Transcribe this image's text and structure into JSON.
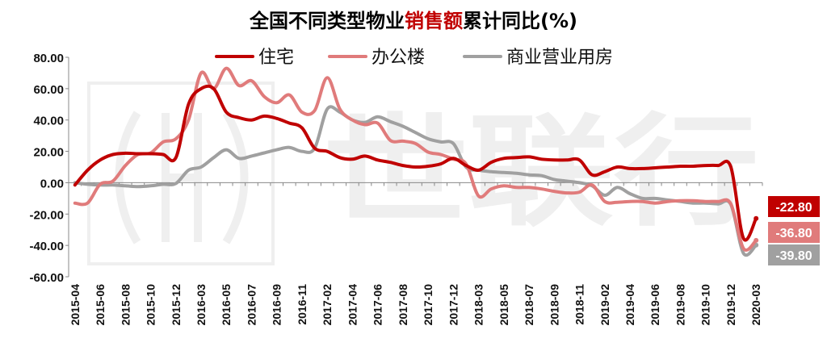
{
  "chart_data": {
    "type": "line",
    "title": {
      "prefix": "全国不同类型物业",
      "highlight": "销售额",
      "suffix": "累计同比(%)"
    },
    "watermark": "世联行",
    "ylim": [
      -60,
      80
    ],
    "yticks": [
      "80.00",
      "60.00",
      "40.00",
      "20.00",
      "0.00",
      "-20.00",
      "-40.00",
      "-60.00"
    ],
    "grid": false,
    "legend_position": "top",
    "colors": {
      "title_highlight": "#c00000"
    },
    "x": [
      "2015-04",
      "2015-05",
      "2015-06",
      "2015-07",
      "2015-08",
      "2015-09",
      "2015-10",
      "2015-11",
      "2015-12",
      "2016-02",
      "2016-03",
      "2016-04",
      "2016-05",
      "2016-06",
      "2016-07",
      "2016-08",
      "2016-09",
      "2016-10",
      "2016-11",
      "2016-12",
      "2017-02",
      "2017-03",
      "2017-04",
      "2017-05",
      "2017-06",
      "2017-07",
      "2017-08",
      "2017-09",
      "2017-10",
      "2017-11",
      "2017-12",
      "2018-02",
      "2018-03",
      "2018-04",
      "2018-05",
      "2018-06",
      "2018-07",
      "2018-08",
      "2018-09",
      "2018-10",
      "2018-11",
      "2018-12",
      "2019-02",
      "2019-03",
      "2019-04",
      "2019-05",
      "2019-06",
      "2019-07",
      "2019-08",
      "2019-09",
      "2019-10",
      "2019-11",
      "2019-12",
      "2020-02",
      "2020-03"
    ],
    "xtick_labels": [
      "2015-04",
      "2015-06",
      "2015-08",
      "2015-10",
      "2015-12",
      "2016-03",
      "2016-05",
      "2016-07",
      "2016-09",
      "2016-11",
      "2017-02",
      "2017-04",
      "2017-06",
      "2017-08",
      "2017-10",
      "2017-12",
      "2018-03",
      "2018-05",
      "2018-07",
      "2018-09",
      "2018-11",
      "2019-02",
      "2019-04",
      "2019-06",
      "2019-08",
      "2019-10",
      "2019-12",
      "2020-03"
    ],
    "series": [
      {
        "name": "住宅",
        "color": "#c00000",
        "end_label": "-22.80",
        "values": [
          -1.5,
          8.0,
          14.5,
          18.0,
          18.8,
          18.5,
          18.5,
          18.0,
          16.0,
          50.0,
          60.0,
          60.0,
          45.0,
          41.5,
          40.0,
          42.5,
          41.0,
          38.0,
          35.0,
          22.0,
          20.0,
          16.0,
          15.0,
          17.0,
          14.5,
          13.0,
          11.0,
          10.0,
          10.5,
          12.0,
          15.5,
          11.0,
          8.0,
          13.0,
          15.5,
          16.0,
          16.5,
          15.0,
          14.5,
          14.5,
          14.5,
          5.0,
          7.0,
          10.0,
          9.0,
          9.0,
          9.5,
          10.0,
          10.5,
          10.5,
          11.0,
          11.0,
          10.0,
          -35.5,
          -22.8
        ]
      },
      {
        "name": "办公楼",
        "color": "#e07b7b",
        "end_label": "-36.80",
        "values": [
          -13.0,
          -13.0,
          -1.0,
          1.0,
          11.0,
          18.0,
          19.0,
          26.0,
          28.0,
          40.0,
          70.0,
          60.0,
          73.0,
          62.0,
          65.0,
          55.0,
          51.0,
          56.0,
          45.0,
          46.0,
          67.0,
          47.0,
          40.0,
          37.0,
          38.0,
          27.0,
          26.5,
          25.0,
          19.5,
          18.0,
          15.0,
          12.0,
          -8.5,
          -4.0,
          -2.0,
          -3.0,
          -3.0,
          -4.0,
          -5.5,
          -6.5,
          -6.0,
          -1.5,
          -12.0,
          -12.5,
          -12.0,
          -12.0,
          -13.0,
          -12.0,
          -11.5,
          -11.5,
          -12.0,
          -12.0,
          -13.5,
          -42.0,
          -36.8
        ]
      },
      {
        "name": "商业营业用房",
        "color": "#a0a0a0",
        "end_label": "-39.80",
        "values": [
          0.0,
          -1.0,
          -1.5,
          -1.5,
          -2.0,
          -2.5,
          -2.0,
          -1.0,
          -0.5,
          8.0,
          10.0,
          16.0,
          21.0,
          15.5,
          17.0,
          19.0,
          21.0,
          22.5,
          20.0,
          22.0,
          47.0,
          45.0,
          40.0,
          38.5,
          42.0,
          39.0,
          36.0,
          32.0,
          28.0,
          26.0,
          25.0,
          10.0,
          8.0,
          7.0,
          6.5,
          6.0,
          5.0,
          4.5,
          2.0,
          1.0,
          0.0,
          -2.0,
          -8.0,
          -3.0,
          -7.0,
          -10.0,
          -10.0,
          -11.0,
          -12.0,
          -13.0,
          -13.0,
          -13.5,
          -14.0,
          -45.0,
          -39.8
        ]
      }
    ]
  }
}
